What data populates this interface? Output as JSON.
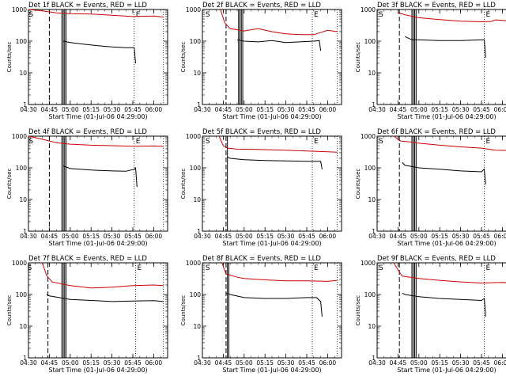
{
  "common": {
    "xlabel": "Start Time (01-Jul-06 04:29:00)",
    "ylabel": "Counts/sec",
    "x_ticks": [
      "04:30",
      "04:45",
      "05:00",
      "05:15",
      "05:30",
      "05:45",
      "06:00"
    ],
    "y_ticks": [
      "1",
      "10",
      "100",
      "1000"
    ],
    "x_range": [
      "04:30",
      "06:10"
    ],
    "y_range": [
      1,
      1000
    ],
    "y_scale": "log",
    "colors": {
      "events": "#000000",
      "lld": "#cc0000",
      "axes": "#000000"
    },
    "marker_labels": {
      "start": "S",
      "end": "E"
    }
  },
  "chart_data": [
    {
      "type": "line",
      "title": "Det 1f BLACK = Events, RED = LLD",
      "series": [
        {
          "color": "#000000",
          "x": [
            "04:55",
            "05:00",
            "05:10",
            "05:20",
            "05:30",
            "05:40",
            "05:46",
            "05:47"
          ],
          "y": [
            100,
            90,
            80,
            72,
            66,
            62,
            62,
            20
          ]
        },
        {
          "color": "#cc0000",
          "x": [
            "04:30",
            "04:40",
            "04:50",
            "05:00",
            "05:15",
            "05:30",
            "05:45",
            "06:00",
            "06:07"
          ],
          "y": [
            1000,
            900,
            780,
            740,
            720,
            660,
            600,
            620,
            580
          ]
        }
      ],
      "markers": {
        "start_dashed": "04:45",
        "solid_lines": [
          "04:54",
          "04:55",
          "04:56",
          "04:57"
        ],
        "end_dotted": "05:46",
        "dotted": [
          "06:07"
        ]
      }
    },
    {
      "type": "line",
      "title": "Det 2f BLACK = Events, RED = LLD",
      "series": [
        {
          "color": "#000000",
          "x": [
            "04:55",
            "05:00",
            "05:10",
            "05:20",
            "05:30",
            "05:40",
            "05:50",
            "05:54",
            "05:55"
          ],
          "y": [
            110,
            100,
            95,
            105,
            90,
            95,
            100,
            105,
            50
          ]
        },
        {
          "color": "#cc0000",
          "x": [
            "04:43",
            "04:46",
            "04:50",
            "05:00",
            "05:10",
            "05:20",
            "05:30",
            "05:40",
            "05:50",
            "06:00",
            "06:07"
          ],
          "y": [
            1000,
            380,
            250,
            210,
            250,
            200,
            170,
            160,
            160,
            220,
            200
          ]
        }
      ],
      "markers": {
        "start_dashed": "04:47",
        "solid_lines": [
          "04:56",
          "04:57",
          "04:58",
          "04:59"
        ],
        "end_dotted": "05:49",
        "dotted": [
          "06:07"
        ]
      }
    },
    {
      "type": "line",
      "title": "Det 3f BLACK = Events, RED = LLD",
      "series": [
        {
          "color": "#000000",
          "x": [
            "04:50",
            "04:55",
            "05:00",
            "05:15",
            "05:30",
            "05:45",
            "05:47",
            "05:48"
          ],
          "y": [
            140,
            110,
            110,
            105,
            105,
            110,
            110,
            30
          ]
        },
        {
          "color": "#cc0000",
          "x": [
            "04:45",
            "04:50",
            "05:00",
            "05:15",
            "05:30",
            "05:45",
            "05:52",
            "05:55",
            "06:07"
          ],
          "y": [
            800,
            680,
            550,
            480,
            430,
            410,
            420,
            470,
            430
          ]
        }
      ],
      "markers": {
        "start_dashed": "04:46",
        "solid_lines": [
          "04:55",
          "04:56",
          "04:57",
          "04:58"
        ],
        "end_dotted": "05:47",
        "dotted": [
          "06:07"
        ]
      }
    },
    {
      "type": "line",
      "title": "Det 4f BLACK = Events, RED = LLD",
      "series": [
        {
          "color": "#000000",
          "x": [
            "04:55",
            "05:00",
            "05:15",
            "05:30",
            "05:40",
            "05:46",
            "05:47",
            "05:48"
          ],
          "y": [
            115,
            95,
            85,
            80,
            78,
            90,
            100,
            25
          ]
        },
        {
          "color": "#cc0000",
          "x": [
            "04:30",
            "04:40",
            "04:50",
            "05:00",
            "05:15",
            "05:30",
            "05:45",
            "06:00",
            "06:07"
          ],
          "y": [
            1000,
            800,
            620,
            560,
            520,
            500,
            480,
            490,
            480
          ]
        }
      ],
      "markers": {
        "start_dashed": "04:45",
        "solid_lines": [
          "04:54",
          "04:55",
          "04:56",
          "04:57"
        ],
        "end_dotted": "05:46",
        "dotted": [
          "06:07"
        ]
      }
    },
    {
      "type": "line",
      "title": "Det 5f BLACK = Events, RED = LLD",
      "series": [
        {
          "color": "#000000",
          "x": [
            "04:48",
            "04:50",
            "05:00",
            "05:15",
            "05:30",
            "05:45",
            "05:55",
            "05:56"
          ],
          "y": [
            220,
            200,
            180,
            170,
            165,
            160,
            160,
            90
          ]
        },
        {
          "color": "#cc0000",
          "x": [
            "04:42",
            "04:45",
            "04:48",
            "04:55",
            "05:10",
            "05:30",
            "05:45",
            "06:00",
            "06:07"
          ],
          "y": [
            1000,
            500,
            420,
            390,
            380,
            360,
            340,
            320,
            310
          ]
        }
      ],
      "markers": {
        "start_dashed": "04:47",
        "solid_lines": [
          "04:48"
        ],
        "end_dotted": "05:49",
        "dotted": [
          "06:07"
        ]
      }
    },
    {
      "type": "line",
      "title": "Det 6f BLACK = Events, RED = LLD",
      "series": [
        {
          "color": "#000000",
          "x": [
            "04:48",
            "04:50",
            "05:00",
            "05:15",
            "05:30",
            "05:45",
            "05:47",
            "05:48"
          ],
          "y": [
            150,
            120,
            100,
            90,
            80,
            75,
            90,
            30
          ]
        },
        {
          "color": "#cc0000",
          "x": [
            "04:42",
            "04:47",
            "04:55",
            "05:00",
            "05:15",
            "05:30",
            "05:45",
            "05:55",
            "06:07"
          ],
          "y": [
            1000,
            700,
            650,
            600,
            520,
            460,
            420,
            360,
            350
          ]
        }
      ],
      "markers": {
        "start_dashed": "04:46",
        "solid_lines": [
          "04:55",
          "04:56",
          "04:57",
          "04:58"
        ],
        "end_dotted": "05:47",
        "dotted": [
          "06:07"
        ]
      }
    },
    {
      "type": "line",
      "title": "Det 7f BLACK = Events, RED = LLD",
      "series": [
        {
          "color": "#000000",
          "x": [
            "04:43",
            "04:45",
            "05:00",
            "05:15",
            "05:30",
            "05:45",
            "06:00",
            "06:07"
          ],
          "y": [
            100,
            90,
            70,
            65,
            60,
            62,
            64,
            60
          ]
        },
        {
          "color": "#cc0000",
          "x": [
            "04:40",
            "04:43",
            "04:47",
            "05:00",
            "05:15",
            "05:30",
            "05:45",
            "06:00",
            "06:07"
          ],
          "y": [
            1000,
            400,
            250,
            190,
            160,
            170,
            190,
            200,
            190
          ]
        }
      ],
      "markers": {
        "start_dashed": "04:44",
        "solid_lines": [
          "04:54",
          "04:55",
          "04:56",
          "04:57"
        ],
        "end_dotted": "05:47",
        "dotted": [
          "06:07"
        ]
      }
    },
    {
      "type": "line",
      "title": "Det 8f BLACK = Events, RED = LLD",
      "series": [
        {
          "color": "#000000",
          "x": [
            "04:47",
            "04:50",
            "05:00",
            "05:15",
            "05:30",
            "05:45",
            "05:52",
            "05:55",
            "05:56"
          ],
          "y": [
            110,
            100,
            80,
            75,
            75,
            80,
            80,
            60,
            20
          ]
        },
        {
          "color": "#cc0000",
          "x": [
            "04:44",
            "04:47",
            "04:55",
            "05:00",
            "05:15",
            "05:30",
            "05:45",
            "06:00",
            "06:07"
          ],
          "y": [
            1000,
            450,
            350,
            320,
            290,
            270,
            270,
            260,
            280
          ]
        }
      ],
      "markers": {
        "start_dashed": "04:47",
        "solid_lines": [
          "04:48",
          "04:49"
        ],
        "end_dotted": "05:49",
        "dotted": [
          "06:07"
        ]
      }
    },
    {
      "type": "line",
      "title": "Det 9f BLACK = Events, RED = LLD",
      "series": [
        {
          "color": "#000000",
          "x": [
            "04:48",
            "04:50",
            "05:00",
            "05:15",
            "05:30",
            "05:45",
            "05:47",
            "05:48"
          ],
          "y": [
            110,
            100,
            85,
            75,
            70,
            65,
            75,
            20
          ]
        },
        {
          "color": "#cc0000",
          "x": [
            "04:42",
            "04:45",
            "04:48",
            "05:00",
            "05:15",
            "05:30",
            "05:45",
            "06:00",
            "06:07"
          ],
          "y": [
            1000,
            600,
            380,
            320,
            280,
            250,
            230,
            240,
            230
          ]
        }
      ],
      "markers": {
        "start_dashed": "04:46",
        "solid_lines": [
          "04:55",
          "04:56",
          "04:57",
          "04:58"
        ],
        "end_dotted": "05:47",
        "dotted": [
          "06:07"
        ]
      }
    }
  ]
}
